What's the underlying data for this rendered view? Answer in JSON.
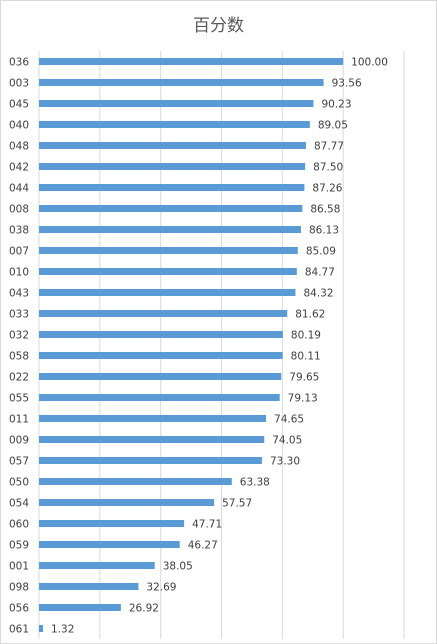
{
  "chart_data": {
    "type": "bar",
    "orientation": "horizontal",
    "title": "百分数",
    "xlabel": "",
    "ylabel": "",
    "xlim": [
      0,
      120
    ],
    "grid": true,
    "categories": [
      "036",
      "003",
      "045",
      "040",
      "048",
      "042",
      "044",
      "008",
      "038",
      "007",
      "010",
      "043",
      "033",
      "032",
      "058",
      "022",
      "055",
      "011",
      "009",
      "057",
      "050",
      "054",
      "060",
      "059",
      "001",
      "098",
      "056",
      "061"
    ],
    "values": [
      100.0,
      93.56,
      90.23,
      89.05,
      87.77,
      87.5,
      87.26,
      86.58,
      86.13,
      85.09,
      84.77,
      84.32,
      81.62,
      80.19,
      80.11,
      79.65,
      79.13,
      74.65,
      74.05,
      73.3,
      63.38,
      57.57,
      47.71,
      46.27,
      38.05,
      32.69,
      26.92,
      1.32
    ],
    "value_labels": [
      "100.00",
      "93.56",
      "90.23",
      "89.05",
      "87.77",
      "87.50",
      "87.26",
      "86.58",
      "86.13",
      "85.09",
      "84.77",
      "84.32",
      "81.62",
      "80.19",
      "80.11",
      "79.65",
      "79.13",
      "74.65",
      "74.05",
      "73.30",
      "63.38",
      "57.57",
      "47.71",
      "46.27",
      "38.05",
      "32.69",
      "26.92",
      "1.32"
    ],
    "colors": {
      "bar": "#5b9bd5",
      "grid": "#d9d9d9",
      "text": "#404040"
    }
  }
}
